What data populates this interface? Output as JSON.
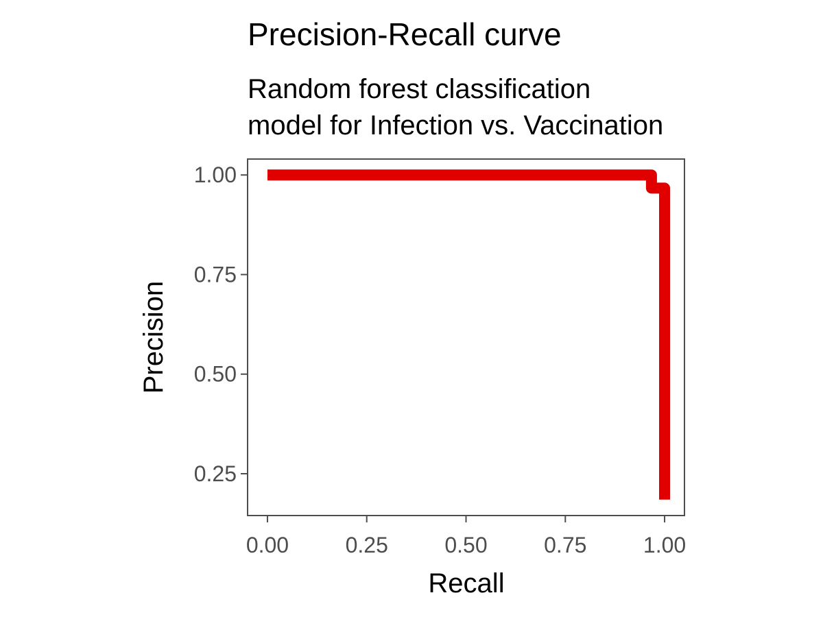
{
  "chart_data": {
    "type": "line",
    "title": "Precision-Recall curve",
    "subtitle": [
      "Random forest classification",
      "model for Infection vs. Vaccination"
    ],
    "xlabel": "Recall",
    "ylabel": "Precision",
    "xlim": [
      -0.05,
      1.05
    ],
    "ylim": [
      0.145,
      1.04
    ],
    "x_ticks": [
      0,
      0.25,
      0.5,
      0.75,
      1.0
    ],
    "x_tick_labels": [
      "0.00",
      "0.25",
      "0.50",
      "0.75",
      "1.00"
    ],
    "y_ticks": [
      0.25,
      0.5,
      0.75,
      1.0
    ],
    "y_tick_labels": [
      "0.25",
      "0.50",
      "0.75",
      "1.00"
    ],
    "grid": false,
    "legend": "none",
    "series": [
      {
        "color": "#e00000",
        "line_style": "step",
        "points": [
          {
            "x": 0.0,
            "y": 1.0
          },
          {
            "x": 0.967,
            "y": 1.0
          },
          {
            "x": 0.967,
            "y": 0.967
          },
          {
            "x": 1.0,
            "y": 0.967
          },
          {
            "x": 1.0,
            "y": 0.185
          }
        ]
      }
    ]
  },
  "colors": {
    "panel_border": "#4d4d4d",
    "tick": "#4d4d4d",
    "series": "#e00000"
  }
}
